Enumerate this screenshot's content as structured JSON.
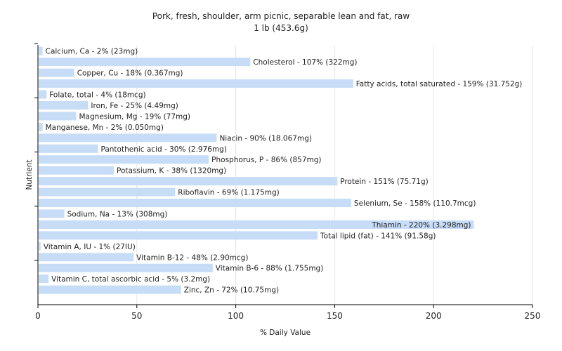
{
  "chart_data": {
    "type": "bar",
    "orientation": "horizontal",
    "title": "Pork, fresh, shoulder, arm picnic, separable lean and fat, raw",
    "subtitle": "1 lb (453.6g)",
    "xlabel": "% Daily Value",
    "ylabel": "Nutrient",
    "xlim": [
      0,
      250
    ],
    "xticks": [
      0,
      50,
      100,
      150,
      200,
      250
    ],
    "grid": true,
    "bar_color": "#c6dcf7",
    "bars": [
      {
        "label": "Calcium, Ca - 2% (23mg)",
        "value": 2
      },
      {
        "label": "Cholesterol - 107% (322mg)",
        "value": 107
      },
      {
        "label": "Copper, Cu - 18% (0.367mg)",
        "value": 18
      },
      {
        "label": "Fatty acids, total saturated - 159% (31.752g)",
        "value": 159
      },
      {
        "label": "Folate, total - 4% (18mcg)",
        "value": 4
      },
      {
        "label": "Iron, Fe - 25% (4.49mg)",
        "value": 25
      },
      {
        "label": "Magnesium, Mg - 19% (77mg)",
        "value": 19
      },
      {
        "label": "Manganese, Mn - 2% (0.050mg)",
        "value": 2
      },
      {
        "label": "Niacin - 90% (18.067mg)",
        "value": 90
      },
      {
        "label": "Pantothenic acid - 30% (2.976mg)",
        "value": 30
      },
      {
        "label": "Phosphorus, P - 86% (857mg)",
        "value": 86
      },
      {
        "label": "Potassium, K - 38% (1320mg)",
        "value": 38
      },
      {
        "label": "Protein - 151% (75.71g)",
        "value": 151
      },
      {
        "label": "Riboflavin - 69% (1.175mg)",
        "value": 69
      },
      {
        "label": "Selenium, Se - 158% (110.7mcg)",
        "value": 158
      },
      {
        "label": "Sodium, Na - 13% (308mg)",
        "value": 13
      },
      {
        "label": "Thiamin - 220% (3.298mg)",
        "value": 220
      },
      {
        "label": "Total lipid (fat) - 141% (91.58g)",
        "value": 141
      },
      {
        "label": "Vitamin A, IU - 1% (27IU)",
        "value": 1
      },
      {
        "label": "Vitamin B-12 - 48% (2.90mcg)",
        "value": 48
      },
      {
        "label": "Vitamin B-6 - 88% (1.755mg)",
        "value": 88
      },
      {
        "label": "Vitamin C, total ascorbic acid - 5% (3.2mg)",
        "value": 5
      },
      {
        "label": "Zinc, Zn - 72% (10.75mg)",
        "value": 72
      }
    ]
  }
}
